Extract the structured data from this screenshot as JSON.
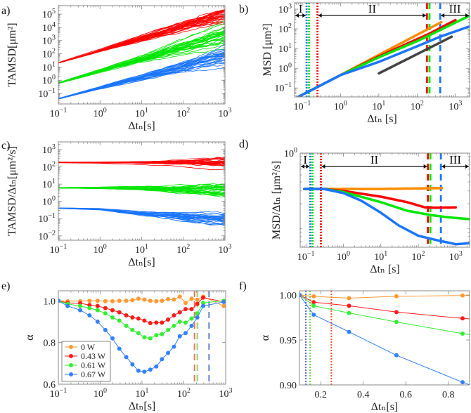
{
  "chart_data": [
    {
      "id": "a",
      "panel_label": "a)",
      "type": "line",
      "xlabel": "Δtₙ[s]",
      "ylabel": "TAMSD[μm²]",
      "xscale": "log",
      "yscale": "log",
      "xlim": [
        0.1,
        1000
      ],
      "ylim": [
        0.016,
        440000
      ],
      "xticks": [
        0.1,
        1,
        10,
        100,
        1000
      ],
      "xtick_labels": [
        "10^-1",
        "10^0",
        "10^1",
        "10^2",
        "10^3"
      ],
      "yticks": [
        0.1,
        1,
        10,
        100,
        1000,
        10000,
        100000
      ],
      "ytick_labels": [
        "10^-1",
        "10^0",
        "10^1",
        "10^2",
        "10^3",
        "10^4",
        "10^5"
      ],
      "ensembles": [
        {
          "name": "red",
          "color": "#ff0000",
          "x": [
            0.1,
            1,
            10,
            100,
            1000
          ],
          "median": [
            20,
            160,
            1300,
            10000,
            70000
          ],
          "spread_dex": [
            0.02,
            0.08,
            0.18,
            0.3,
            0.45
          ]
        },
        {
          "name": "green",
          "color": "#00e600",
          "x": [
            0.1,
            1,
            10,
            100,
            1000
          ],
          "median": [
            0.6,
            4.8,
            38,
            300,
            2500
          ],
          "spread_dex": [
            0.03,
            0.1,
            0.2,
            0.32,
            0.45
          ]
        },
        {
          "name": "blue",
          "color": "#1a75ff",
          "x": [
            0.1,
            1,
            10,
            100,
            1000
          ],
          "median": [
            0.04,
            0.28,
            1.8,
            12,
            90
          ],
          "spread_dex": [
            0.03,
            0.1,
            0.2,
            0.32,
            0.45
          ]
        }
      ]
    },
    {
      "id": "b",
      "panel_label": "b)",
      "type": "line",
      "xlabel": "Δtₙ [s]",
      "ylabel": "MSD [μm²]",
      "xscale": "log",
      "yscale": "log",
      "xlim": [
        0.063,
        2340
      ],
      "ylim": [
        0.035,
        2100
      ],
      "xticks": [
        0.1,
        1,
        10,
        100,
        1000
      ],
      "xtick_labels": [
        "10^-1",
        "10^0",
        "10^1",
        "10^2",
        "10^3"
      ],
      "yticks": [
        0.1,
        1,
        10,
        100,
        1000
      ],
      "ytick_labels": [
        "10^-1",
        "10^0",
        "10^1",
        "10^2",
        "10^3"
      ],
      "series": [
        {
          "name": "0 W",
          "color": "#ff8c00",
          "x": [
            0.08,
            1,
            10,
            100,
            430
          ],
          "y": [
            0.036,
            0.45,
            4.8,
            50,
            220
          ]
        },
        {
          "name": "0.43 W",
          "color": "#ff0000",
          "x": [
            0.08,
            1,
            10,
            100,
            200,
            1000
          ],
          "y": [
            0.036,
            0.45,
            4,
            30,
            55,
            280
          ]
        },
        {
          "name": "0.61 W",
          "color": "#00e600",
          "x": [
            0.08,
            1,
            10,
            100,
            200,
            2500
          ],
          "y": [
            0.036,
            0.45,
            3.6,
            24,
            45,
            500
          ]
        },
        {
          "name": "0.67 W",
          "color": "#1a75ff",
          "x": [
            0.08,
            1,
            10,
            100,
            400,
            2500
          ],
          "y": [
            0.036,
            0.45,
            2.1,
            13,
            40,
            140
          ]
        },
        {
          "name": "reference slope",
          "color": "#444444",
          "x": [
            10,
            800
          ],
          "y": [
            0.55,
            40
          ]
        }
      ],
      "vlines": [
        {
          "x": 0.13,
          "color": "#1a75ff",
          "style": "dotted"
        },
        {
          "x": 0.15,
          "color": "#00e600",
          "style": "dotted"
        },
        {
          "x": 0.25,
          "color": "#ff0000",
          "style": "dotted"
        },
        {
          "x": 180,
          "color": "#ff0000",
          "style": "dashed"
        },
        {
          "x": 210,
          "color": "#00e600",
          "style": "dashed"
        },
        {
          "x": 400,
          "color": "#1a75ff",
          "style": "dashed"
        }
      ],
      "regions": [
        {
          "label": "I",
          "from": 0.063,
          "to": 0.13
        },
        {
          "label": "II",
          "from": 0.25,
          "to": 180
        },
        {
          "label": "III",
          "from": 400,
          "to": 2340
        }
      ]
    },
    {
      "id": "c",
      "panel_label": "c)",
      "type": "line",
      "xlabel": "Δtₙ[s]",
      "ylabel": "TAMSD/Δtₙ[μm²/s]",
      "xscale": "log",
      "yscale": "log",
      "xlim": [
        0.1,
        1000
      ],
      "ylim": [
        0.0056,
        2800
      ],
      "xticks": [
        0.1,
        1,
        10,
        100,
        1000
      ],
      "xtick_labels": [
        "10^-1",
        "10^0",
        "10^1",
        "10^2",
        "10^3"
      ],
      "yticks": [
        0.01,
        0.1,
        1,
        10,
        100,
        1000
      ],
      "ytick_labels": [
        "10^-2",
        "10^-1",
        "10^0",
        "10^1",
        "10^2",
        "10^3"
      ],
      "ensembles": [
        {
          "name": "red",
          "color": "#ff0000",
          "x": [
            0.1,
            1,
            10,
            100,
            1000
          ],
          "median": [
            180,
            175,
            170,
            160,
            140
          ],
          "spread_dex": [
            0.02,
            0.03,
            0.06,
            0.13,
            0.25
          ]
        },
        {
          "name": "green",
          "color": "#00e600",
          "x": [
            0.1,
            1,
            10,
            100,
            1000
          ],
          "median": [
            6,
            6,
            5.6,
            5,
            4.8
          ],
          "spread_dex": [
            0.02,
            0.04,
            0.1,
            0.2,
            0.3
          ]
        },
        {
          "name": "blue",
          "color": "#1a75ff",
          "x": [
            0.1,
            1,
            10,
            100,
            1000
          ],
          "median": [
            0.4,
            0.35,
            0.2,
            0.13,
            0.1
          ],
          "spread_dex": [
            0.02,
            0.04,
            0.1,
            0.2,
            0.3
          ]
        }
      ]
    },
    {
      "id": "d",
      "panel_label": "d)",
      "type": "line",
      "xlabel": "Δtₙ [s]",
      "ylabel": "MSD/Δtₙ [μm²/s]",
      "xscale": "log",
      "yscale": "log",
      "xlim": [
        0.07,
        2340
      ],
      "ylim": [
        0.05,
        1
      ],
      "xticks": [
        0.1,
        1,
        10,
        100,
        1000
      ],
      "xtick_labels": [
        "10^-1",
        "10^0",
        "10^1",
        "10^2",
        "10^3"
      ],
      "yticks": [
        1
      ],
      "ytick_labels": [
        "10^0"
      ],
      "series": [
        {
          "name": "0 W",
          "color": "#ff8c00",
          "x": [
            0.09,
            1,
            10,
            100,
            430
          ],
          "y": [
            0.32,
            0.32,
            0.32,
            0.325,
            0.328
          ]
        },
        {
          "name": "0.43 W",
          "color": "#ff0000",
          "x": [
            0.09,
            0.3,
            1,
            10,
            50,
            150,
            300,
            1000
          ],
          "y": [
            0.32,
            0.32,
            0.3,
            0.25,
            0.21,
            0.178,
            0.176,
            0.178
          ]
        },
        {
          "name": "0.61 W",
          "color": "#00e600",
          "x": [
            0.09,
            0.3,
            1,
            10,
            50,
            200,
            600,
            2500
          ],
          "y": [
            0.32,
            0.32,
            0.29,
            0.21,
            0.16,
            0.14,
            0.13,
            0.122
          ]
        },
        {
          "name": "0.67 W",
          "color": "#1a75ff",
          "x": [
            0.09,
            0.3,
            1,
            3,
            10,
            30,
            100,
            300,
            1000,
            2500
          ],
          "y": [
            0.32,
            0.32,
            0.28,
            0.22,
            0.15,
            0.1,
            0.072,
            0.063,
            0.055,
            0.057
          ]
        }
      ],
      "vlines": [
        {
          "x": 0.13,
          "color": "#1a75ff",
          "style": "dotted"
        },
        {
          "x": 0.15,
          "color": "#00e600",
          "style": "dotted"
        },
        {
          "x": 0.25,
          "color": "#ff0000",
          "style": "dotted"
        },
        {
          "x": 180,
          "color": "#ff0000",
          "style": "dashed"
        },
        {
          "x": 210,
          "color": "#00e600",
          "style": "dashed"
        },
        {
          "x": 400,
          "color": "#1a75ff",
          "style": "dashed"
        }
      ],
      "regions": [
        {
          "label": "I",
          "from": 0.07,
          "to": 0.13
        },
        {
          "label": "II",
          "from": 0.25,
          "to": 180
        },
        {
          "label": "III",
          "from": 400,
          "to": 2340
        }
      ]
    },
    {
      "id": "e",
      "panel_label": "e)",
      "type": "line",
      "xlabel": "Δtₙ[s]",
      "ylabel": "α",
      "xscale": "log",
      "yscale": "linear",
      "xlim": [
        0.1,
        1000
      ],
      "ylim": [
        0.6,
        1.048
      ],
      "xticks": [
        0.1,
        1,
        10,
        100,
        1000
      ],
      "xtick_labels": [
        "10^-1",
        "10^0",
        "10^1",
        "10^2",
        "10^3"
      ],
      "yticks": [
        0.6,
        0.8,
        1.0
      ],
      "ytick_labels": [
        "0.6",
        "0.8",
        "1.0"
      ],
      "markers": true,
      "x_shared": [
        0.1,
        0.167,
        0.333,
        0.556,
        0.867,
        1.33,
        1.97,
        2.87,
        4.2,
        5.9,
        8.2,
        11.4,
        15.8,
        22,
        30,
        42,
        58,
        80,
        110,
        153,
        210,
        290,
        900
      ],
      "series": [
        {
          "name": "0 W",
          "color": "#ff9933",
          "y": [
            1.0,
            0.998,
            0.998,
            1.0,
            1.0,
            0.998,
            0.998,
            1.0,
            1.0,
            1.003,
            1.01,
            1.006,
            1.0,
            0.998,
            1.0,
            1.008,
            1.006,
            1.02,
            0.99,
            1.01,
            1.005,
            1.02,
            0.975
          ]
        },
        {
          "name": "0.43 W",
          "color": "#ff1a1a",
          "y": [
            1.0,
            0.99,
            0.988,
            0.98,
            0.975,
            0.965,
            0.955,
            0.945,
            0.93,
            0.92,
            0.915,
            0.905,
            0.893,
            0.895,
            0.895,
            0.91,
            0.93,
            0.945,
            0.96,
            0.96,
            0.985,
            1.015,
            0.995
          ]
        },
        {
          "name": "0.61 W",
          "color": "#33ee33",
          "y": [
            1.0,
            0.985,
            0.975,
            0.965,
            0.955,
            0.94,
            0.92,
            0.905,
            0.88,
            0.86,
            0.845,
            0.825,
            0.82,
            0.835,
            0.84,
            0.86,
            0.88,
            0.9,
            0.895,
            0.915,
            0.94,
            0.99,
            1.0
          ]
        },
        {
          "name": "0.67 W",
          "color": "#3380ff",
          "y": [
            1.0,
            0.975,
            0.955,
            0.93,
            0.9,
            0.86,
            0.82,
            0.77,
            0.73,
            0.695,
            0.665,
            0.66,
            0.67,
            0.685,
            0.72,
            0.75,
            0.78,
            0.83,
            0.845,
            0.88,
            0.92,
            0.975,
            0.995
          ]
        }
      ],
      "vlines": [
        {
          "x": 180,
          "color": "#e8735a",
          "style": "dashed"
        },
        {
          "x": 210,
          "color": "#8fd46a",
          "style": "dashed"
        },
        {
          "x": 400,
          "color": "#6a7fd0",
          "style": "dashed"
        }
      ],
      "legend": {
        "position": "lower-left",
        "entries": [
          "0 W",
          "0.43 W",
          "0.61 W",
          "0.67 W"
        ]
      }
    },
    {
      "id": "f",
      "panel_label": "f)",
      "type": "line",
      "xlabel": "Δtₙ[s]",
      "ylabel": "α",
      "xscale": "linear",
      "yscale": "linear",
      "xlim": [
        0.1,
        0.9
      ],
      "ylim": [
        0.9,
        1.0047
      ],
      "xticks": [
        0.2,
        0.4,
        0.6,
        0.8
      ],
      "xtick_labels": [
        "0.2",
        "0.4",
        "0.6",
        "0.8"
      ],
      "yticks": [
        0.9,
        0.95,
        1.0
      ],
      "ytick_labels": [
        "0.90",
        "0.95",
        "1.00"
      ],
      "markers": true,
      "x_shared": [
        0.1,
        0.167,
        0.333,
        0.556,
        0.867,
        0.95
      ],
      "series": [
        {
          "name": "0 W",
          "color": "#ff9933",
          "y": [
            1.0,
            0.9985,
            0.9965,
            0.9985,
            0.9995,
            0.9995
          ]
        },
        {
          "name": "0.43 W",
          "color": "#ff1a1a",
          "y": [
            1.0,
            0.992,
            0.988,
            0.981,
            0.974,
            0.9725
          ]
        },
        {
          "name": "0.61 W",
          "color": "#33ee33",
          "y": [
            1.0,
            0.988,
            0.98,
            0.97,
            0.957,
            0.954
          ]
        },
        {
          "name": "0.67 W",
          "color": "#3380ff",
          "y": [
            1.0,
            0.978,
            0.959,
            0.933,
            0.903,
            0.896
          ]
        }
      ],
      "marker_count": 5,
      "vlines": [
        {
          "x": 0.13,
          "color": "#5566cc",
          "style": "dotted"
        },
        {
          "x": 0.15,
          "color": "#77cc44",
          "style": "dotted"
        },
        {
          "x": 0.25,
          "color": "#ee5533",
          "style": "dotted"
        }
      ]
    }
  ]
}
